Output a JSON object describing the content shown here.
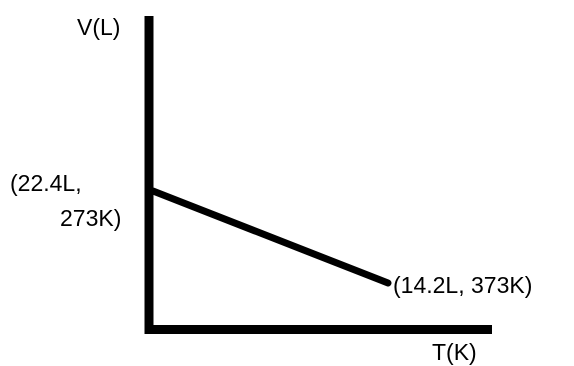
{
  "chart_data": {
    "type": "line",
    "title": "",
    "ylabel": "V(L)",
    "xlabel": "T(K)",
    "grid": false,
    "series": [
      {
        "points": [
          {
            "volume_L": 22.4,
            "temperature_K": 273,
            "label_line1": "(22.4L,",
            "label_line2": "273K)"
          },
          {
            "volume_L": 14.2,
            "temperature_K": 373,
            "label": "(14.2L, 373K)"
          }
        ]
      }
    ]
  },
  "colors": {
    "axis": "#000000",
    "line": "#000000",
    "background": "#ffffff"
  }
}
